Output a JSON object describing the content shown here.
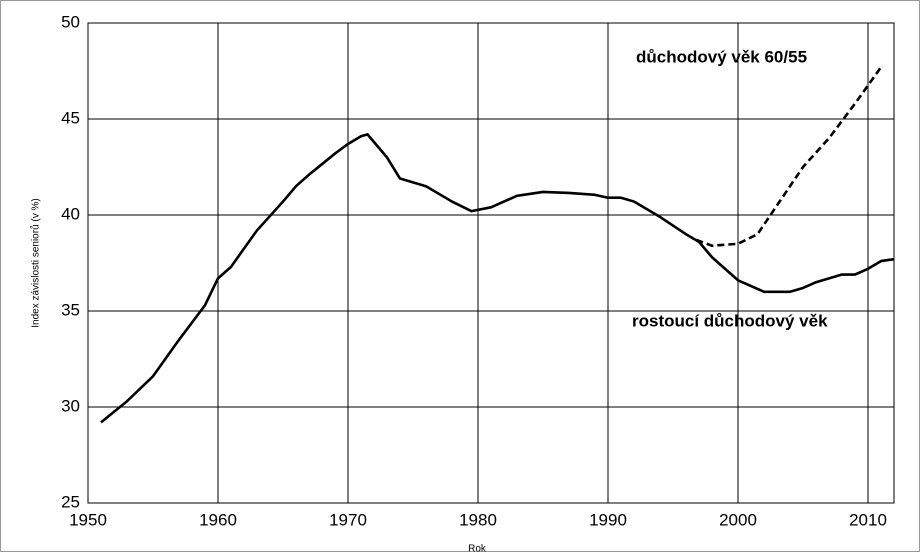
{
  "chart_data": {
    "type": "line",
    "xlabel": "Rok",
    "ylabel": "Index závislosti seniorů (v %)",
    "xlim": [
      1950,
      2012
    ],
    "xticks": [
      1950,
      1960,
      1970,
      1980,
      1990,
      2000,
      2010
    ],
    "ylim": [
      25,
      50
    ],
    "yticks": [
      25,
      30,
      35,
      40,
      45,
      50
    ],
    "grid": true,
    "series": [
      {
        "name": "rostoucí důchodový věk",
        "color": "#000000",
        "dash": false,
        "x": [
          1951,
          1953,
          1955,
          1957,
          1959,
          1960,
          1961,
          1963,
          1965,
          1966,
          1967,
          1969,
          1970,
          1971,
          1971.5,
          1973,
          1974,
          1976,
          1978,
          1979.5,
          1981,
          1983,
          1985,
          1987,
          1989,
          1990,
          1991,
          1992,
          1994,
          1996,
          1997,
          1998,
          2000,
          2002,
          2004,
          2005,
          2006,
          2008,
          2009,
          2010,
          2011,
          2012
        ],
        "values": [
          29.2,
          30.3,
          31.6,
          33.5,
          35.3,
          36.7,
          37.3,
          39.2,
          40.7,
          41.5,
          42.1,
          43.2,
          43.7,
          44.1,
          44.2,
          43.0,
          41.9,
          41.5,
          40.7,
          40.2,
          40.4,
          41.0,
          41.2,
          41.15,
          41.05,
          40.9,
          40.9,
          40.7,
          39.9,
          39.0,
          38.6,
          37.8,
          36.6,
          36.0,
          36.0,
          36.2,
          36.5,
          36.9,
          36.9,
          37.2,
          37.6,
          37.7
        ]
      },
      {
        "name": "důchodový věk 60/55",
        "color": "#000000",
        "dash": true,
        "x": [
          1996.8,
          1998,
          2000,
          2001.5,
          2003,
          2005,
          2007,
          2009,
          2011
        ],
        "values": [
          38.7,
          38.4,
          38.5,
          39.0,
          40.5,
          42.5,
          44.0,
          45.8,
          47.7
        ]
      }
    ]
  }
}
